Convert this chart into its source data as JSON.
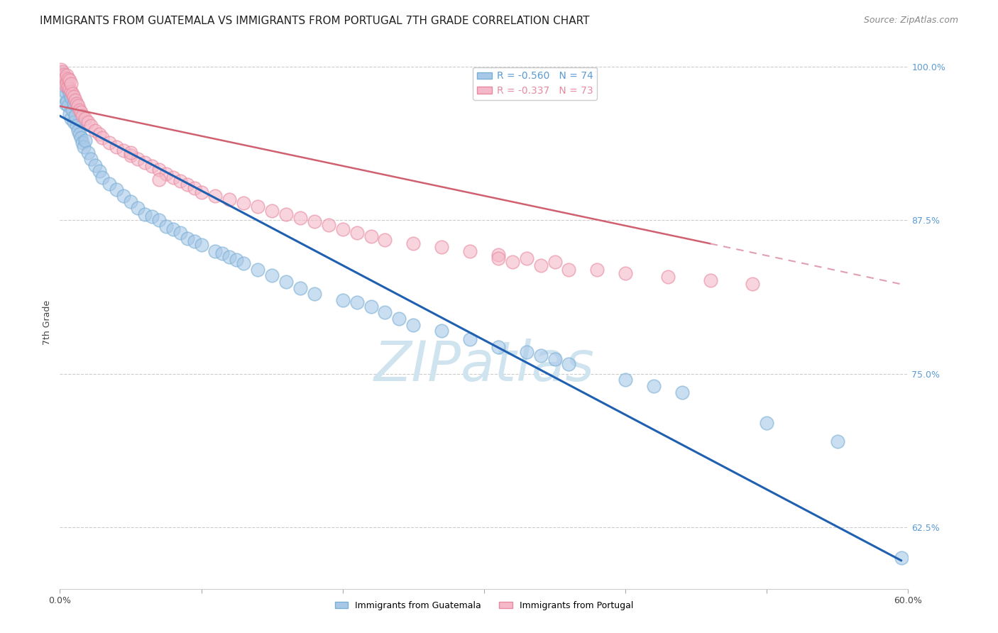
{
  "title": "IMMIGRANTS FROM GUATEMALA VS IMMIGRANTS FROM PORTUGAL 7TH GRADE CORRELATION CHART",
  "source": "Source: ZipAtlas.com",
  "ylabel": "7th Grade",
  "xlim": [
    0.0,
    0.6
  ],
  "ylim": [
    0.575,
    1.008
  ],
  "ytick_labels_show": [
    0.625,
    0.75,
    0.875,
    1.0
  ],
  "guatemala_color": "#a8c8e8",
  "guatemala_edge_color": "#7aafd4",
  "portugal_color": "#f4b8c8",
  "portugal_edge_color": "#e88aa0",
  "guatemala_R": -0.56,
  "guatemala_N": 74,
  "portugal_R": -0.337,
  "portugal_N": 73,
  "watermark": "ZIPatlas",
  "watermark_color": "#d0e4f0",
  "background_color": "#ffffff",
  "grid_color": "#cccccc",
  "right_tick_color": "#5b9bd5",
  "blue_line_color": "#2060b0",
  "pink_line_color": "#d06070",
  "pink_dashed_color": "#e0a0b0",
  "title_fontsize": 11,
  "source_fontsize": 9,
  "guatemala_scatter_x": [
    0.001,
    0.002,
    0.002,
    0.003,
    0.003,
    0.004,
    0.004,
    0.005,
    0.005,
    0.006,
    0.006,
    0.007,
    0.007,
    0.008,
    0.008,
    0.009,
    0.01,
    0.01,
    0.011,
    0.012,
    0.013,
    0.014,
    0.015,
    0.016,
    0.017,
    0.018,
    0.02,
    0.022,
    0.025,
    0.028,
    0.03,
    0.035,
    0.04,
    0.045,
    0.05,
    0.055,
    0.06,
    0.065,
    0.07,
    0.075,
    0.08,
    0.085,
    0.09,
    0.095,
    0.1,
    0.11,
    0.115,
    0.12,
    0.125,
    0.13,
    0.14,
    0.15,
    0.16,
    0.17,
    0.18,
    0.2,
    0.21,
    0.22,
    0.23,
    0.24,
    0.25,
    0.27,
    0.29,
    0.31,
    0.33,
    0.34,
    0.35,
    0.36,
    0.4,
    0.42,
    0.44,
    0.5,
    0.55,
    0.595
  ],
  "guatemala_scatter_y": [
    0.993,
    0.995,
    0.985,
    0.99,
    0.975,
    0.98,
    0.97,
    0.988,
    0.972,
    0.982,
    0.968,
    0.978,
    0.962,
    0.975,
    0.958,
    0.965,
    0.97,
    0.955,
    0.96,
    0.952,
    0.948,
    0.945,
    0.942,
    0.938,
    0.935,
    0.94,
    0.93,
    0.925,
    0.92,
    0.915,
    0.91,
    0.905,
    0.9,
    0.895,
    0.89,
    0.885,
    0.88,
    0.878,
    0.875,
    0.87,
    0.868,
    0.865,
    0.86,
    0.858,
    0.855,
    0.85,
    0.848,
    0.845,
    0.843,
    0.84,
    0.835,
    0.83,
    0.825,
    0.82,
    0.815,
    0.81,
    0.808,
    0.805,
    0.8,
    0.795,
    0.79,
    0.785,
    0.778,
    0.772,
    0.768,
    0.765,
    0.762,
    0.758,
    0.745,
    0.74,
    0.735,
    0.71,
    0.695,
    0.6
  ],
  "portugal_scatter_x": [
    0.001,
    0.002,
    0.002,
    0.003,
    0.003,
    0.004,
    0.004,
    0.005,
    0.005,
    0.006,
    0.006,
    0.007,
    0.007,
    0.008,
    0.008,
    0.009,
    0.01,
    0.011,
    0.012,
    0.013,
    0.014,
    0.015,
    0.016,
    0.018,
    0.02,
    0.022,
    0.025,
    0.028,
    0.03,
    0.035,
    0.04,
    0.045,
    0.05,
    0.055,
    0.06,
    0.065,
    0.07,
    0.075,
    0.08,
    0.085,
    0.09,
    0.095,
    0.1,
    0.11,
    0.12,
    0.13,
    0.14,
    0.15,
    0.16,
    0.17,
    0.18,
    0.19,
    0.2,
    0.21,
    0.22,
    0.23,
    0.25,
    0.27,
    0.29,
    0.31,
    0.33,
    0.35,
    0.38,
    0.4,
    0.43,
    0.46,
    0.49,
    0.07,
    0.31,
    0.32,
    0.34,
    0.36,
    0.05
  ],
  "portugal_scatter_y": [
    0.998,
    0.992,
    0.996,
    0.988,
    0.994,
    0.985,
    0.991,
    0.987,
    0.993,
    0.984,
    0.99,
    0.982,
    0.989,
    0.98,
    0.986,
    0.978,
    0.976,
    0.973,
    0.97,
    0.968,
    0.965,
    0.963,
    0.96,
    0.958,
    0.955,
    0.952,
    0.948,
    0.945,
    0.942,
    0.938,
    0.935,
    0.932,
    0.928,
    0.925,
    0.922,
    0.919,
    0.916,
    0.913,
    0.91,
    0.907,
    0.904,
    0.901,
    0.898,
    0.895,
    0.892,
    0.889,
    0.886,
    0.883,
    0.88,
    0.877,
    0.874,
    0.871,
    0.868,
    0.865,
    0.862,
    0.859,
    0.856,
    0.853,
    0.85,
    0.847,
    0.844,
    0.841,
    0.835,
    0.832,
    0.829,
    0.826,
    0.823,
    0.908,
    0.844,
    0.841,
    0.838,
    0.835,
    0.93
  ],
  "blue_trendline": [
    [
      0.0,
      0.96
    ],
    [
      0.595,
      0.598
    ]
  ],
  "pink_solid_trendline": [
    [
      0.0,
      0.968
    ],
    [
      0.46,
      0.856
    ]
  ],
  "pink_dashed_trendline": [
    [
      0.46,
      0.856
    ],
    [
      0.595,
      0.823
    ]
  ]
}
